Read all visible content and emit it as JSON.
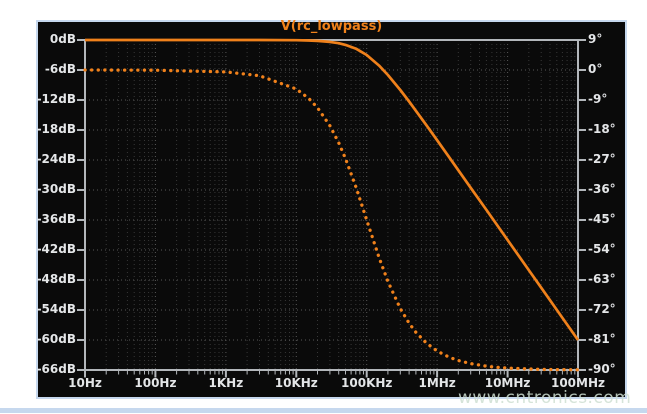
{
  "page": {
    "background": "#ffffff",
    "bottom_strip_color": "#c6d8ee"
  },
  "panel": {
    "background": "#0a0a0a",
    "border_color": "#c6d8ee"
  },
  "watermark": {
    "text": "www.cntronics.com",
    "color": "rgba(207,223,210,0.85)"
  },
  "chart_data": {
    "type": "line",
    "title": "V(rc_lowpass)",
    "title_color": "#f0821b",
    "grid": {
      "major_color": "#585858",
      "minor_color": "#373737",
      "axis_color": "#b3b7bb",
      "label_color": "#e4e6e8",
      "grid_on": true
    },
    "x_axis": {
      "scale": "log",
      "unit": "Hz",
      "range": [
        10,
        100000000
      ],
      "tick_values": [
        10,
        100,
        1000,
        10000,
        100000,
        1000000,
        10000000,
        100000000
      ],
      "tick_labels": [
        "10Hz",
        "100Hz",
        "1KHz",
        "10KHz",
        "100KHz",
        "1MHz",
        "10MHz",
        "100MHz"
      ]
    },
    "y_axis_left": {
      "unit": "dB",
      "range": [
        0,
        -66
      ],
      "tick_values": [
        0,
        -6,
        -12,
        -18,
        -24,
        -30,
        -36,
        -42,
        -48,
        -54,
        -60,
        -66
      ],
      "tick_labels": [
        "0dB",
        "-6dB",
        "-12dB",
        "-18dB",
        "-24dB",
        "-30dB",
        "-36dB",
        "-42dB",
        "-48dB",
        "-54dB",
        "-60dB",
        "-66dB"
      ]
    },
    "y_axis_right": {
      "unit": "degrees",
      "range": [
        9,
        -90
      ],
      "tick_values": [
        9,
        0,
        -9,
        -18,
        -27,
        -36,
        -45,
        -54,
        -63,
        -72,
        -81,
        -90
      ],
      "tick_labels": [
        "9°",
        "0°",
        "-9°",
        "-18°",
        "-27°",
        "-36°",
        "-45°",
        "-54°",
        "-63°",
        "-72°",
        "-81°",
        "-90°"
      ]
    },
    "series": [
      {
        "name": "magnitude",
        "axis": "left",
        "style": "solid",
        "color": "#f0811b",
        "points": [
          [
            10,
            0
          ],
          [
            100,
            0
          ],
          [
            1000,
            0
          ],
          [
            3000,
            0
          ],
          [
            10000,
            -0.04
          ],
          [
            15000,
            -0.1
          ],
          [
            20000,
            -0.17
          ],
          [
            30000,
            -0.37
          ],
          [
            40000,
            -0.64
          ],
          [
            50000,
            -0.97
          ],
          [
            70000,
            -1.73
          ],
          [
            100000,
            -3.01
          ],
          [
            150000,
            -5.12
          ],
          [
            200000,
            -6.99
          ],
          [
            300000,
            -10.0
          ],
          [
            400000,
            -12.3
          ],
          [
            500000,
            -14.15
          ],
          [
            700000,
            -16.99
          ],
          [
            1000000,
            -20.04
          ],
          [
            1500000,
            -23.54
          ],
          [
            2000000,
            -26.03
          ],
          [
            3000000,
            -29.55
          ],
          [
            5000000,
            -33.98
          ],
          [
            7000000,
            -36.9
          ],
          [
            10000000,
            -40.0
          ],
          [
            20000000,
            -46.02
          ],
          [
            30000000,
            -49.54
          ],
          [
            50000000,
            -53.98
          ],
          [
            100000000,
            -60.0
          ]
        ]
      },
      {
        "name": "phase",
        "axis": "right",
        "style": "dotted",
        "color": "#f0811b",
        "points": [
          [
            10,
            -0.01
          ],
          [
            100,
            -0.06
          ],
          [
            1000,
            -0.57
          ],
          [
            3000,
            -1.72
          ],
          [
            10000,
            -5.71
          ],
          [
            15000,
            -8.53
          ],
          [
            20000,
            -11.31
          ],
          [
            30000,
            -16.7
          ],
          [
            40000,
            -21.8
          ],
          [
            50000,
            -26.57
          ],
          [
            70000,
            -34.99
          ],
          [
            100000,
            -45.0
          ],
          [
            150000,
            -56.31
          ],
          [
            200000,
            -63.43
          ],
          [
            300000,
            -71.57
          ],
          [
            400000,
            -75.96
          ],
          [
            500000,
            -78.69
          ],
          [
            700000,
            -81.87
          ],
          [
            1000000,
            -84.29
          ],
          [
            1500000,
            -86.19
          ],
          [
            2000000,
            -87.14
          ],
          [
            3000000,
            -88.09
          ],
          [
            5000000,
            -88.85
          ],
          [
            7000000,
            -89.18
          ],
          [
            10000000,
            -89.43
          ],
          [
            20000000,
            -89.71
          ],
          [
            30000000,
            -89.81
          ],
          [
            50000000,
            -89.89
          ],
          [
            100000000,
            -89.94
          ]
        ]
      }
    ]
  }
}
